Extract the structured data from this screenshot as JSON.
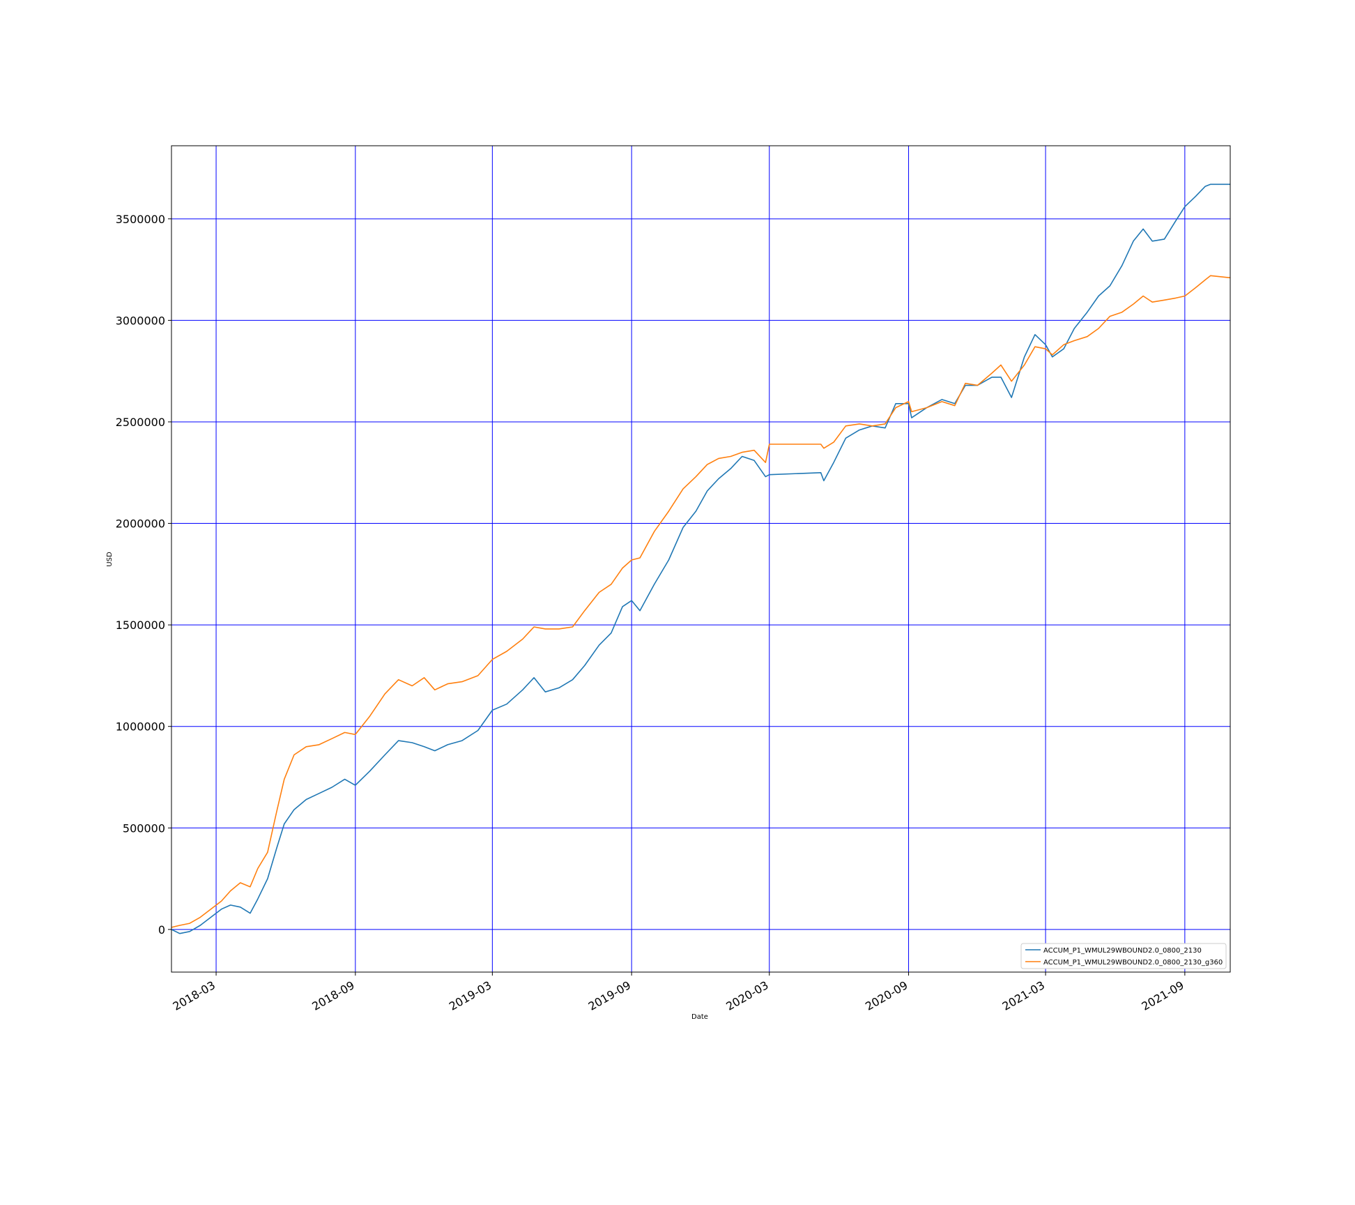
{
  "chart_data": {
    "type": "line",
    "title": "",
    "xlabel": "Date",
    "ylabel": "USD",
    "xlim": [
      "2018-01-01",
      "2021-10-31"
    ],
    "ylim": [
      -210000,
      3860000
    ],
    "x_ticks": [
      "2018-03",
      "2018-09",
      "2019-03",
      "2019-09",
      "2020-03",
      "2020-09",
      "2021-03",
      "2021-09"
    ],
    "x_tick_dates": [
      "2018-03-01",
      "2018-09-01",
      "2019-03-01",
      "2019-09-01",
      "2020-03-01",
      "2020-09-01",
      "2021-03-01",
      "2021-09-01"
    ],
    "y_ticks": [
      0,
      500000,
      1000000,
      1500000,
      2000000,
      2500000,
      3000000,
      3500000
    ],
    "y_tick_labels": [
      "0",
      "500000",
      "1000000",
      "1500000",
      "2000000",
      "2500000",
      "3000000",
      "3500000"
    ],
    "grid": true,
    "grid_color": "#0000ff",
    "legend_position": "lower right",
    "series": [
      {
        "name": "ACCUM_P1_WMUL29WBOUND2.0_0800_2130",
        "color": "#1f77b4",
        "points": [
          [
            "2018-01-01",
            0
          ],
          [
            "2018-01-12",
            -20000
          ],
          [
            "2018-01-25",
            -10000
          ],
          [
            "2018-02-08",
            20000
          ],
          [
            "2018-02-22",
            60000
          ],
          [
            "2018-03-08",
            100000
          ],
          [
            "2018-03-20",
            120000
          ],
          [
            "2018-04-02",
            110000
          ],
          [
            "2018-04-15",
            80000
          ],
          [
            "2018-04-25",
            150000
          ],
          [
            "2018-05-08",
            250000
          ],
          [
            "2018-05-20",
            400000
          ],
          [
            "2018-05-30",
            520000
          ],
          [
            "2018-06-12",
            590000
          ],
          [
            "2018-06-28",
            640000
          ],
          [
            "2018-07-15",
            670000
          ],
          [
            "2018-08-01",
            700000
          ],
          [
            "2018-08-18",
            740000
          ],
          [
            "2018-09-01",
            710000
          ],
          [
            "2018-09-20",
            780000
          ],
          [
            "2018-10-10",
            860000
          ],
          [
            "2018-10-28",
            930000
          ],
          [
            "2018-11-15",
            920000
          ],
          [
            "2018-12-01",
            900000
          ],
          [
            "2018-12-15",
            880000
          ],
          [
            "2019-01-01",
            910000
          ],
          [
            "2019-01-20",
            930000
          ],
          [
            "2019-02-10",
            980000
          ],
          [
            "2019-03-01",
            1080000
          ],
          [
            "2019-03-20",
            1110000
          ],
          [
            "2019-04-10",
            1180000
          ],
          [
            "2019-04-25",
            1240000
          ],
          [
            "2019-05-10",
            1170000
          ],
          [
            "2019-05-28",
            1190000
          ],
          [
            "2019-06-15",
            1230000
          ],
          [
            "2019-07-01",
            1300000
          ],
          [
            "2019-07-20",
            1400000
          ],
          [
            "2019-08-05",
            1460000
          ],
          [
            "2019-08-20",
            1590000
          ],
          [
            "2019-09-01",
            1620000
          ],
          [
            "2019-09-12",
            1570000
          ],
          [
            "2019-10-01",
            1700000
          ],
          [
            "2019-10-20",
            1820000
          ],
          [
            "2019-11-08",
            1980000
          ],
          [
            "2019-11-25",
            2060000
          ],
          [
            "2019-12-10",
            2160000
          ],
          [
            "2019-12-25",
            2220000
          ],
          [
            "2020-01-10",
            2270000
          ],
          [
            "2020-01-25",
            2330000
          ],
          [
            "2020-02-10",
            2310000
          ],
          [
            "2020-02-25",
            2230000
          ],
          [
            "2020-03-01",
            2240000
          ],
          [
            "2020-05-08",
            2250000
          ],
          [
            "2020-05-12",
            2210000
          ],
          [
            "2020-05-25",
            2300000
          ],
          [
            "2020-06-10",
            2420000
          ],
          [
            "2020-06-28",
            2460000
          ],
          [
            "2020-07-15",
            2480000
          ],
          [
            "2020-08-01",
            2470000
          ],
          [
            "2020-08-15",
            2590000
          ],
          [
            "2020-09-01",
            2590000
          ],
          [
            "2020-09-05",
            2520000
          ],
          [
            "2020-09-25",
            2570000
          ],
          [
            "2020-10-15",
            2610000
          ],
          [
            "2020-11-01",
            2590000
          ],
          [
            "2020-11-15",
            2680000
          ],
          [
            "2020-12-01",
            2680000
          ],
          [
            "2020-12-20",
            2720000
          ],
          [
            "2021-01-01",
            2720000
          ],
          [
            "2021-01-15",
            2620000
          ],
          [
            "2021-02-01",
            2820000
          ],
          [
            "2021-02-15",
            2930000
          ],
          [
            "2021-03-01",
            2880000
          ],
          [
            "2021-03-10",
            2820000
          ],
          [
            "2021-03-25",
            2860000
          ],
          [
            "2021-04-08",
            2960000
          ],
          [
            "2021-04-25",
            3040000
          ],
          [
            "2021-05-10",
            3120000
          ],
          [
            "2021-05-25",
            3170000
          ],
          [
            "2021-06-10",
            3270000
          ],
          [
            "2021-06-25",
            3390000
          ],
          [
            "2021-07-08",
            3450000
          ],
          [
            "2021-07-20",
            3390000
          ],
          [
            "2021-08-05",
            3400000
          ],
          [
            "2021-08-20",
            3490000
          ],
          [
            "2021-09-01",
            3560000
          ],
          [
            "2021-09-15",
            3610000
          ],
          [
            "2021-09-28",
            3660000
          ],
          [
            "2021-10-05",
            3670000
          ],
          [
            "2021-10-31",
            3670000
          ]
        ]
      },
      {
        "name": "ACCUM_P1_WMUL29WBOUND2.0_0800_2130_g360",
        "color": "#ff7f0e",
        "points": [
          [
            "2018-01-01",
            10000
          ],
          [
            "2018-01-12",
            20000
          ],
          [
            "2018-01-25",
            30000
          ],
          [
            "2018-02-08",
            60000
          ],
          [
            "2018-02-22",
            100000
          ],
          [
            "2018-03-08",
            140000
          ],
          [
            "2018-03-20",
            190000
          ],
          [
            "2018-04-02",
            230000
          ],
          [
            "2018-04-15",
            210000
          ],
          [
            "2018-04-25",
            300000
          ],
          [
            "2018-05-08",
            380000
          ],
          [
            "2018-05-20",
            580000
          ],
          [
            "2018-05-30",
            740000
          ],
          [
            "2018-06-12",
            860000
          ],
          [
            "2018-06-28",
            900000
          ],
          [
            "2018-07-15",
            910000
          ],
          [
            "2018-08-01",
            940000
          ],
          [
            "2018-08-18",
            970000
          ],
          [
            "2018-09-01",
            960000
          ],
          [
            "2018-09-20",
            1050000
          ],
          [
            "2018-10-10",
            1160000
          ],
          [
            "2018-10-28",
            1230000
          ],
          [
            "2018-11-15",
            1200000
          ],
          [
            "2018-12-01",
            1240000
          ],
          [
            "2018-12-15",
            1180000
          ],
          [
            "2019-01-01",
            1210000
          ],
          [
            "2019-01-20",
            1220000
          ],
          [
            "2019-02-10",
            1250000
          ],
          [
            "2019-03-01",
            1330000
          ],
          [
            "2019-03-20",
            1370000
          ],
          [
            "2019-04-10",
            1430000
          ],
          [
            "2019-04-25",
            1490000
          ],
          [
            "2019-05-10",
            1480000
          ],
          [
            "2019-05-28",
            1480000
          ],
          [
            "2019-06-15",
            1490000
          ],
          [
            "2019-07-01",
            1570000
          ],
          [
            "2019-07-20",
            1660000
          ],
          [
            "2019-08-05",
            1700000
          ],
          [
            "2019-08-20",
            1780000
          ],
          [
            "2019-09-01",
            1820000
          ],
          [
            "2019-09-12",
            1830000
          ],
          [
            "2019-10-01",
            1960000
          ],
          [
            "2019-10-20",
            2060000
          ],
          [
            "2019-11-08",
            2170000
          ],
          [
            "2019-11-25",
            2230000
          ],
          [
            "2019-12-10",
            2290000
          ],
          [
            "2019-12-25",
            2320000
          ],
          [
            "2020-01-10",
            2330000
          ],
          [
            "2020-01-25",
            2350000
          ],
          [
            "2020-02-10",
            2360000
          ],
          [
            "2020-02-25",
            2300000
          ],
          [
            "2020-03-01",
            2390000
          ],
          [
            "2020-05-08",
            2390000
          ],
          [
            "2020-05-12",
            2370000
          ],
          [
            "2020-05-25",
            2400000
          ],
          [
            "2020-06-10",
            2480000
          ],
          [
            "2020-06-28",
            2490000
          ],
          [
            "2020-07-15",
            2480000
          ],
          [
            "2020-08-01",
            2490000
          ],
          [
            "2020-08-15",
            2570000
          ],
          [
            "2020-09-01",
            2600000
          ],
          [
            "2020-09-05",
            2550000
          ],
          [
            "2020-09-25",
            2570000
          ],
          [
            "2020-10-15",
            2600000
          ],
          [
            "2020-11-01",
            2580000
          ],
          [
            "2020-11-15",
            2690000
          ],
          [
            "2020-12-01",
            2680000
          ],
          [
            "2020-12-20",
            2740000
          ],
          [
            "2021-01-01",
            2780000
          ],
          [
            "2021-01-15",
            2700000
          ],
          [
            "2021-02-01",
            2780000
          ],
          [
            "2021-02-15",
            2870000
          ],
          [
            "2021-03-01",
            2860000
          ],
          [
            "2021-03-10",
            2830000
          ],
          [
            "2021-03-25",
            2880000
          ],
          [
            "2021-04-08",
            2900000
          ],
          [
            "2021-04-25",
            2920000
          ],
          [
            "2021-05-10",
            2960000
          ],
          [
            "2021-05-25",
            3020000
          ],
          [
            "2021-06-10",
            3040000
          ],
          [
            "2021-06-25",
            3080000
          ],
          [
            "2021-07-08",
            3120000
          ],
          [
            "2021-07-20",
            3090000
          ],
          [
            "2021-08-05",
            3100000
          ],
          [
            "2021-08-20",
            3110000
          ],
          [
            "2021-09-01",
            3120000
          ],
          [
            "2021-09-15",
            3160000
          ],
          [
            "2021-09-28",
            3200000
          ],
          [
            "2021-10-05",
            3220000
          ],
          [
            "2021-10-31",
            3210000
          ]
        ]
      }
    ]
  }
}
